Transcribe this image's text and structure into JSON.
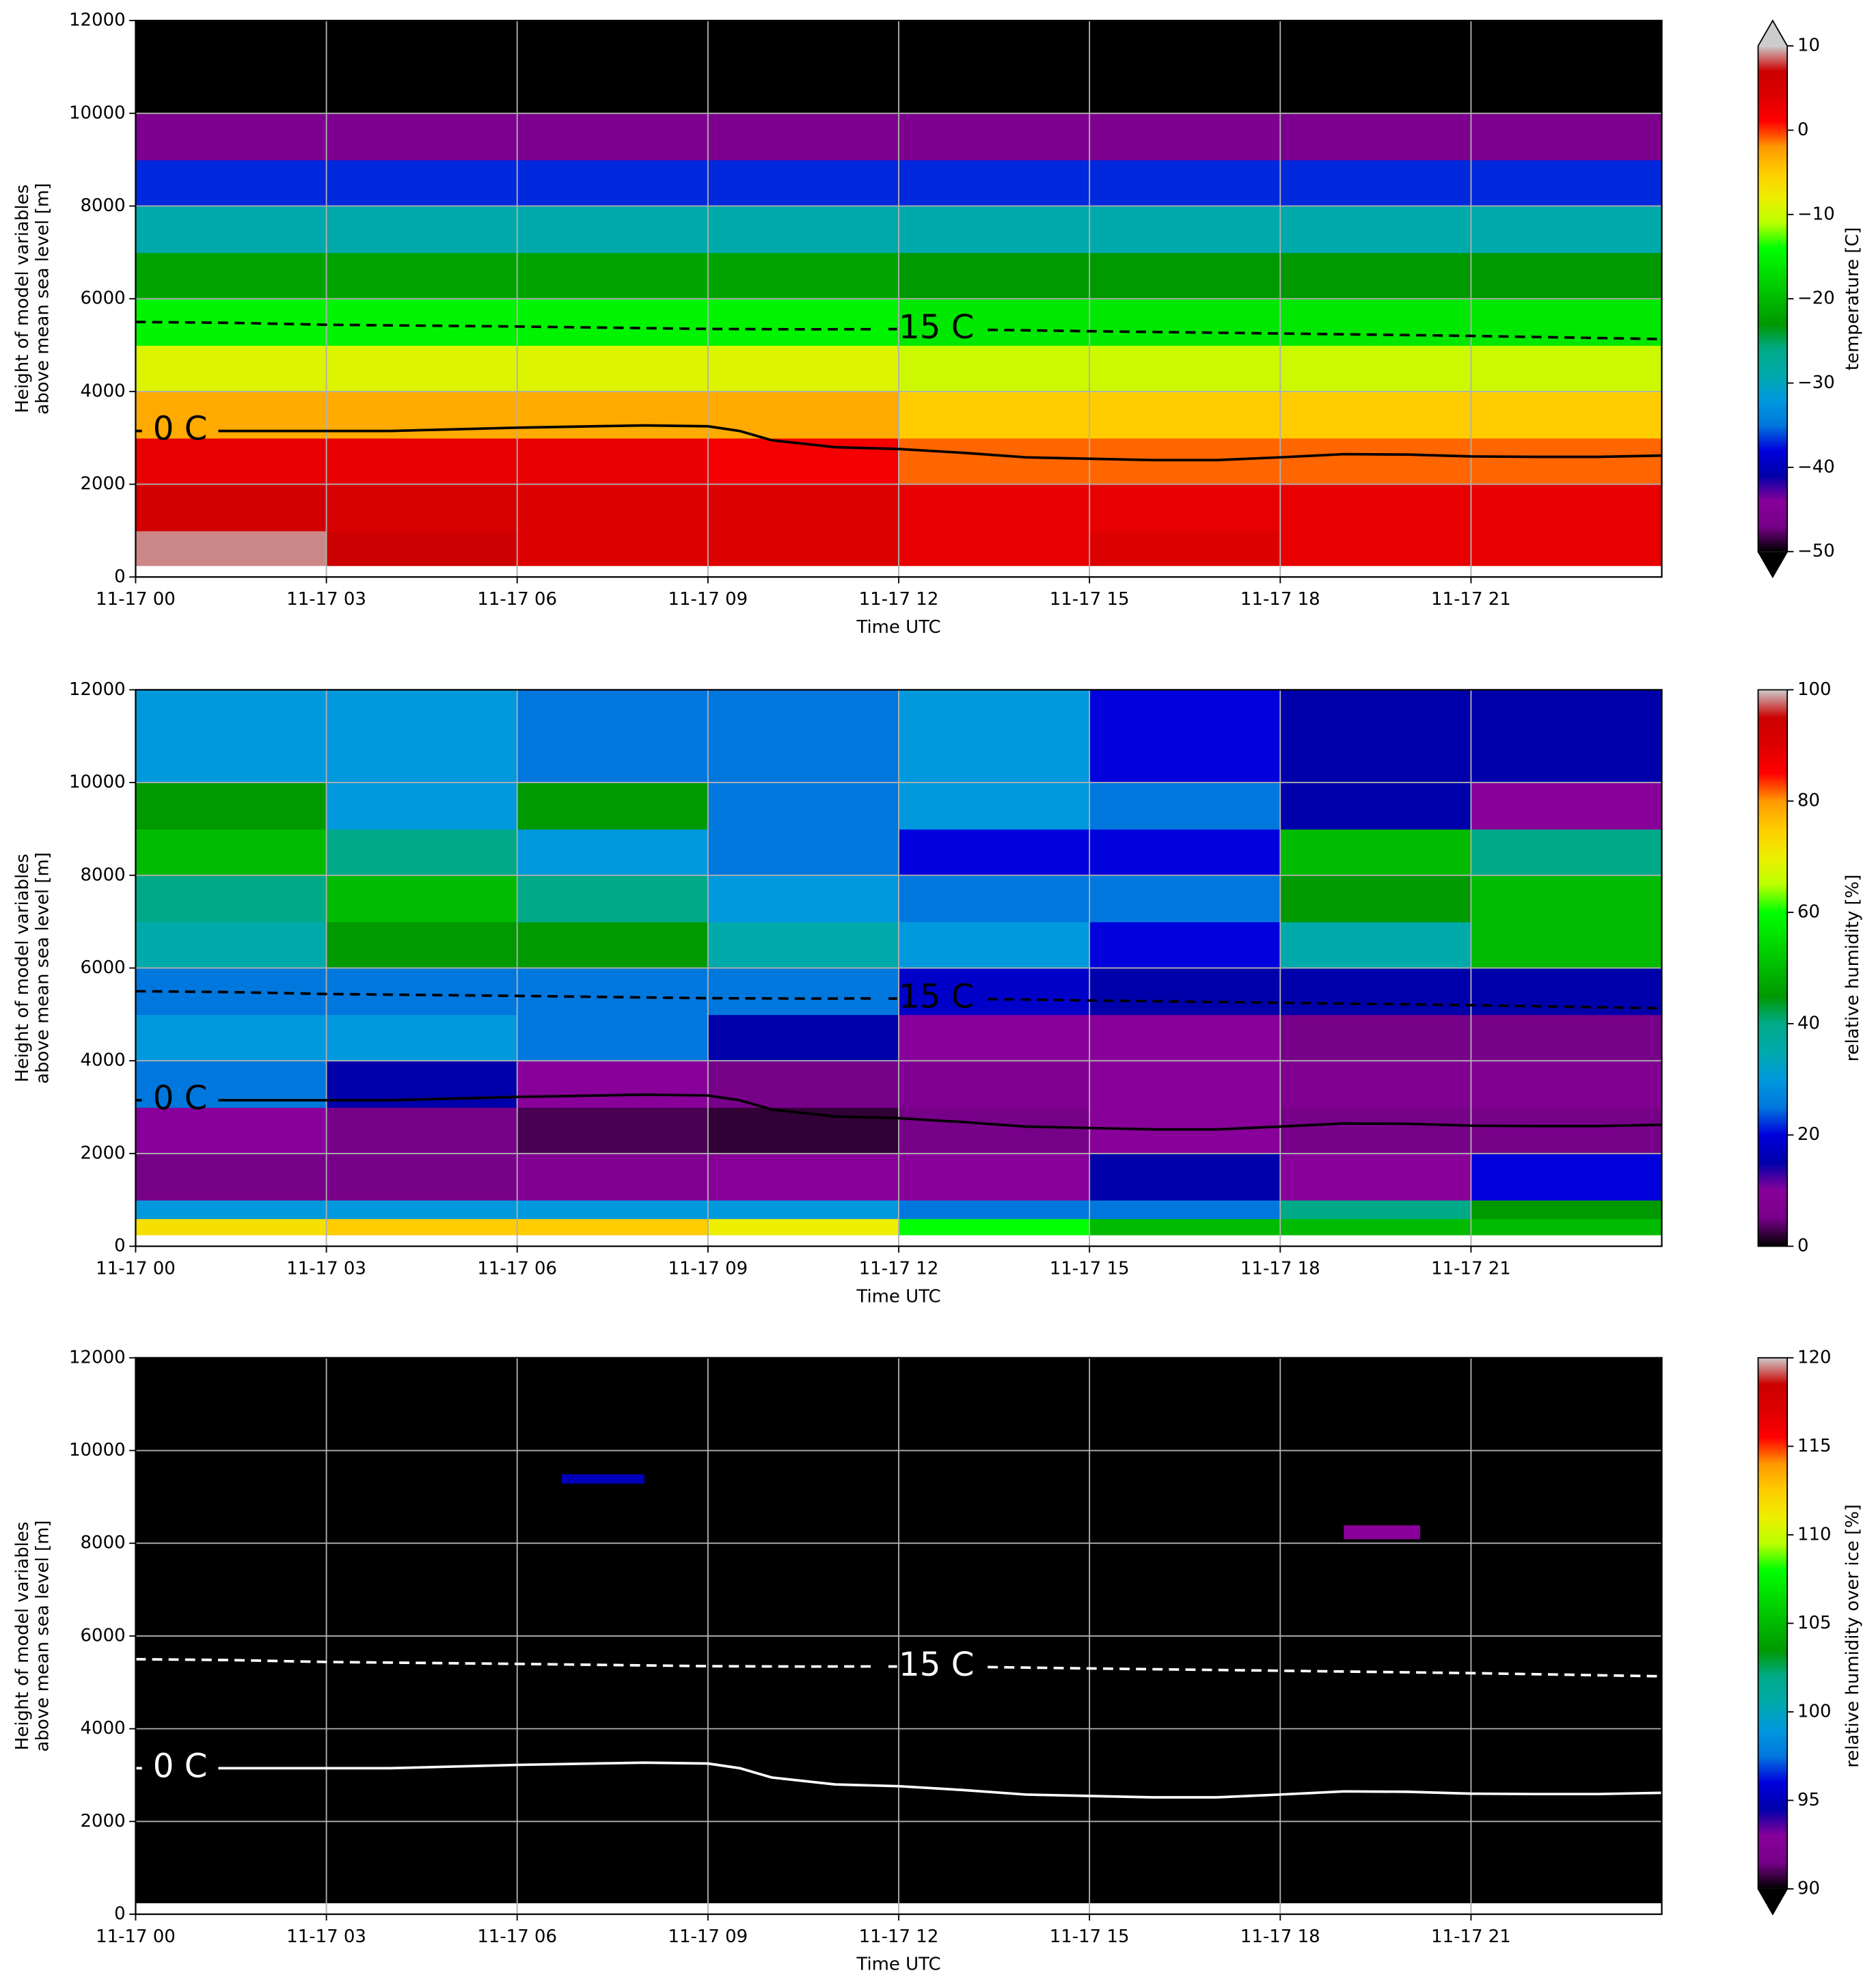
{
  "chart_data": [
    {
      "type": "heatmap",
      "colormap": "nipy_spectral",
      "clim": [
        -50,
        10
      ],
      "cticks": [
        {
          "value": -50,
          "label": "−50"
        },
        {
          "value": -40,
          "label": "−40"
        },
        {
          "value": -30,
          "label": "−30"
        },
        {
          "value": -20,
          "label": "−20"
        },
        {
          "value": -10,
          "label": "−10"
        },
        0,
        10
      ],
      "extend": "both",
      "clabel": "temperature [C]",
      "xlabel": "Time UTC",
      "ylabel": [
        "Height of model variables",
        "above mean sea level [m]"
      ],
      "xlim": [
        0,
        24
      ],
      "ylim": [
        0,
        12000
      ],
      "xticks": [
        {
          "value": 0,
          "label": "11-17 00"
        },
        {
          "value": 3,
          "label": "11-17 03"
        },
        {
          "value": 6,
          "label": "11-17 06"
        },
        {
          "value": 9,
          "label": "11-17 09"
        },
        {
          "value": 12,
          "label": "11-17 12"
        },
        {
          "value": 15,
          "label": "11-17 15"
        },
        {
          "value": 18,
          "label": "11-17 18"
        },
        {
          "value": 21,
          "label": "11-17 21"
        }
      ],
      "yticks": [
        0,
        2000,
        4000,
        6000,
        8000,
        10000,
        12000
      ],
      "grid": true,
      "x_edges": [
        0,
        3,
        6,
        9,
        12,
        15,
        18,
        21,
        24
      ],
      "y_edges": [
        250,
        1000,
        2000,
        3000,
        4000,
        5000,
        6000,
        7000,
        8000,
        9000,
        10000,
        12000
      ],
      "z": [
        [
          9,
          7,
          4,
          4,
          3,
          4,
          3,
          3
        ],
        [
          6,
          5,
          4,
          4,
          3,
          3,
          3,
          3
        ],
        [
          3,
          3,
          3,
          2,
          -1,
          -1,
          -1,
          -1
        ],
        [
          -3,
          -3,
          -3,
          -3,
          -5,
          -5,
          -5,
          -5
        ],
        [
          -9,
          -9,
          -9,
          -9,
          -10,
          -10,
          -10,
          -10
        ],
        [
          -15,
          -15,
          -15,
          -15,
          -16,
          -16,
          -16,
          -16
        ],
        [
          -22,
          -22,
          -22,
          -22,
          -23,
          -23,
          -23,
          -23
        ],
        [
          -29,
          -29,
          -29,
          -29,
          -29,
          -29,
          -29,
          -29
        ],
        [
          -37,
          -37,
          -37,
          -37,
          -37,
          -37,
          -37,
          -37
        ],
        [
          -46,
          -46,
          -46,
          -46,
          -46,
          -46,
          -46,
          -46
        ],
        [
          -56,
          -56,
          -56,
          -56,
          -56,
          -56,
          -56,
          -56
        ]
      ],
      "contour_color": "#000000",
      "contours": [
        {
          "label": "0 C",
          "style": "solid",
          "x": [
            0,
            0.1,
            null,
            1.3,
            3,
            4,
            6,
            8,
            9,
            9.5,
            10,
            11,
            12,
            13,
            14,
            15,
            16,
            17,
            18,
            19,
            20,
            21,
            22,
            23,
            24
          ],
          "y": [
            3150,
            3150,
            null,
            3150,
            3150,
            3150,
            3220,
            3270,
            3250,
            3150,
            2950,
            2800,
            2760,
            2680,
            2580,
            2550,
            2520,
            2520,
            2580,
            2650,
            2640,
            2600,
            2590,
            2590,
            2620
          ]
        },
        {
          "label": "-15 C",
          "style": "dashed",
          "x": [
            0,
            1.5,
            3,
            6,
            9,
            10.5,
            11.6,
            null,
            13.4,
            15,
            18,
            21,
            24
          ],
          "y": [
            5500,
            5480,
            5440,
            5400,
            5350,
            5340,
            5345,
            null,
            5330,
            5300,
            5250,
            5200,
            5130
          ]
        }
      ]
    },
    {
      "type": "heatmap",
      "colormap": "nipy_spectral",
      "clim": [
        0,
        100
      ],
      "cticks": [
        0,
        20,
        40,
        60,
        80,
        100
      ],
      "extend": "neither",
      "clabel": "relative humidity [%]",
      "xlabel": "Time UTC",
      "ylabel": [
        "Height of model variables",
        "above mean sea level [m]"
      ],
      "xlim": [
        0,
        24
      ],
      "ylim": [
        0,
        12000
      ],
      "xticks": [
        {
          "value": 0,
          "label": "11-17 00"
        },
        {
          "value": 3,
          "label": "11-17 03"
        },
        {
          "value": 6,
          "label": "11-17 06"
        },
        {
          "value": 9,
          "label": "11-17 09"
        },
        {
          "value": 12,
          "label": "11-17 12"
        },
        {
          "value": 15,
          "label": "11-17 15"
        },
        {
          "value": 18,
          "label": "11-17 18"
        },
        {
          "value": 21,
          "label": "11-17 21"
        }
      ],
      "yticks": [
        0,
        2000,
        4000,
        6000,
        8000,
        10000,
        12000
      ],
      "grid": true,
      "x_edges": [
        0,
        3,
        6,
        9,
        12,
        15,
        18,
        21,
        24
      ],
      "y_edges": [
        250,
        600,
        1000,
        2000,
        3000,
        4000,
        5000,
        6000,
        7000,
        8000,
        9000,
        10000,
        12000
      ],
      "z": [
        [
          72,
          75,
          75,
          70,
          60,
          50,
          50,
          50
        ],
        [
          30,
          30,
          30,
          30,
          25,
          25,
          40,
          45
        ],
        [
          5,
          5,
          8,
          10,
          10,
          15,
          10,
          20
        ],
        [
          10,
          5,
          3,
          2,
          5,
          10,
          5,
          5
        ],
        [
          25,
          15,
          10,
          5,
          8,
          10,
          8,
          8
        ],
        [
          30,
          30,
          25,
          15,
          10,
          10,
          5,
          5
        ],
        [
          25,
          25,
          25,
          25,
          18,
          15,
          15,
          15
        ],
        [
          35,
          45,
          45,
          35,
          30,
          20,
          35,
          50
        ],
        [
          40,
          50,
          40,
          30,
          25,
          25,
          45,
          50
        ],
        [
          50,
          40,
          30,
          25,
          20,
          20,
          50,
          40
        ],
        [
          45,
          30,
          45,
          25,
          30,
          25,
          15,
          10
        ],
        [
          30,
          30,
          25,
          25,
          30,
          20,
          15,
          15
        ]
      ],
      "contour_color": "#000000",
      "contours": [
        {
          "label": "0 C",
          "style": "solid",
          "x": [
            0,
            0.1,
            null,
            1.3,
            3,
            4,
            6,
            8,
            9,
            9.5,
            10,
            11,
            12,
            13,
            14,
            15,
            16,
            17,
            18,
            19,
            20,
            21,
            22,
            23,
            24
          ],
          "y": [
            3150,
            3150,
            null,
            3150,
            3150,
            3150,
            3220,
            3270,
            3250,
            3150,
            2950,
            2800,
            2760,
            2680,
            2580,
            2550,
            2520,
            2520,
            2580,
            2650,
            2640,
            2600,
            2590,
            2590,
            2620
          ]
        },
        {
          "label": "-15 C",
          "style": "dashed",
          "x": [
            0,
            1.5,
            3,
            6,
            9,
            10.5,
            11.6,
            null,
            13.4,
            15,
            18,
            21,
            24
          ],
          "y": [
            5500,
            5480,
            5440,
            5400,
            5350,
            5340,
            5345,
            null,
            5330,
            5300,
            5250,
            5200,
            5130
          ]
        }
      ]
    },
    {
      "type": "heatmap",
      "colormap": "nipy_spectral",
      "clim": [
        90,
        120
      ],
      "cticks": [
        90,
        95,
        100,
        105,
        110,
        115,
        120
      ],
      "extend": "min",
      "clabel": "relative humidity over ice [%]",
      "xlabel": "Time UTC",
      "ylabel": [
        "Height of model variables",
        "above mean sea level [m]"
      ],
      "xlim": [
        0,
        24
      ],
      "ylim": [
        0,
        12000
      ],
      "xticks": [
        {
          "value": 0,
          "label": "11-17 00"
        },
        {
          "value": 3,
          "label": "11-17 03"
        },
        {
          "value": 6,
          "label": "11-17 06"
        },
        {
          "value": 9,
          "label": "11-17 09"
        },
        {
          "value": 12,
          "label": "11-17 12"
        },
        {
          "value": 15,
          "label": "11-17 15"
        },
        {
          "value": 18,
          "label": "11-17 18"
        },
        {
          "value": 21,
          "label": "11-17 21"
        }
      ],
      "yticks": [
        0,
        2000,
        4000,
        6000,
        8000,
        10000,
        12000
      ],
      "grid": true,
      "x_edges": [
        0,
        6.7,
        8,
        19,
        20.2,
        24
      ],
      "y_edges": [
        250,
        8100,
        8400,
        9300,
        9500,
        12000
      ],
      "z": [
        [
          60,
          60,
          60,
          60,
          60
        ],
        [
          60,
          60,
          60,
          93,
          60
        ],
        [
          60,
          60,
          60,
          60,
          60
        ],
        [
          60,
          95,
          60,
          60,
          60
        ],
        [
          60,
          60,
          60,
          60,
          60
        ]
      ],
      "contour_color": "#ffffff",
      "contours": [
        {
          "label": "0 C",
          "style": "solid",
          "x": [
            0,
            0.1,
            null,
            1.3,
            3,
            4,
            6,
            8,
            9,
            9.5,
            10,
            11,
            12,
            13,
            14,
            15,
            16,
            17,
            18,
            19,
            20,
            21,
            22,
            23,
            24
          ],
          "y": [
            3150,
            3150,
            null,
            3150,
            3150,
            3150,
            3220,
            3270,
            3250,
            3150,
            2950,
            2800,
            2760,
            2680,
            2580,
            2550,
            2520,
            2520,
            2580,
            2650,
            2640,
            2600,
            2590,
            2590,
            2620
          ]
        },
        {
          "label": "-15 C",
          "style": "dashed",
          "x": [
            0,
            1.5,
            3,
            6,
            9,
            10.5,
            11.6,
            null,
            13.4,
            15,
            18,
            21,
            24
          ],
          "y": [
            5500,
            5480,
            5440,
            5400,
            5350,
            5340,
            5345,
            null,
            5330,
            5300,
            5250,
            5200,
            5130
          ]
        }
      ]
    }
  ]
}
